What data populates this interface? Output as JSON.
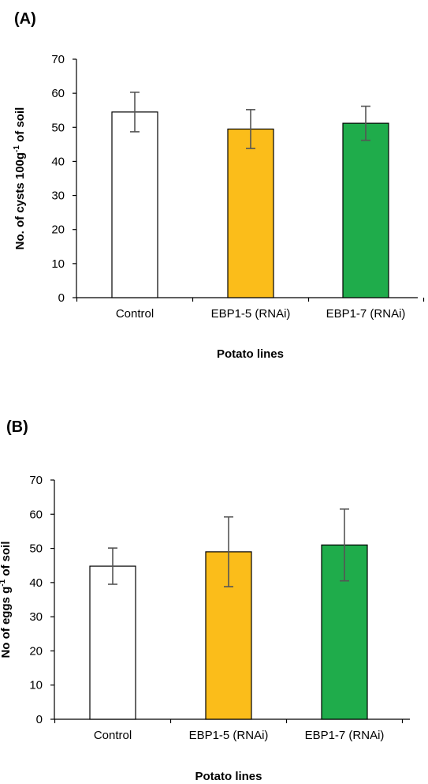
{
  "chart_data": [
    {
      "type": "bar",
      "panel_label": "(A)",
      "categories": [
        "Control",
        "EBP1-5 (RNAi)",
        "EBP1-7 (RNAi)"
      ],
      "values": [
        54.5,
        49.5,
        51.2
      ],
      "errors": [
        5.8,
        5.7,
        5.0
      ],
      "colors": [
        "#ffffff",
        "#fbbd1a",
        "#1fac4b"
      ],
      "xlabel": "Potato lines",
      "ylabel_main": "No. of cysts 100g",
      "ylabel_sup": "-1",
      "ylabel_tail": " of soil",
      "ylim": [
        0,
        70
      ],
      "yticks": [
        0,
        10,
        20,
        30,
        40,
        50,
        60,
        70
      ],
      "grid": false
    },
    {
      "type": "bar",
      "panel_label": "(B)",
      "categories": [
        "Control",
        "EBP1-5 (RNAi)",
        "EBP1-7 (RNAi)"
      ],
      "values": [
        44.8,
        49.0,
        51.0
      ],
      "errors": [
        5.3,
        10.2,
        10.5
      ],
      "colors": [
        "#ffffff",
        "#fbbd1a",
        "#1fac4b"
      ],
      "xlabel": "Potato lines",
      "ylabel_main": "No of eggs g",
      "ylabel_sup": "-1",
      "ylabel_tail": " of soil",
      "ylim": [
        0,
        70
      ],
      "yticks": [
        0,
        10,
        20,
        30,
        40,
        50,
        60,
        70
      ],
      "grid": false
    }
  ]
}
